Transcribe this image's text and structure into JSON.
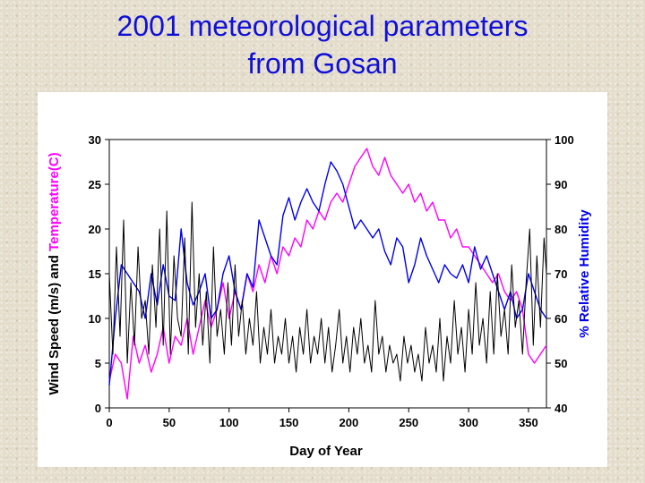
{
  "title": {
    "line1": "2001 meteorological parameters",
    "line2": "from Gosan"
  },
  "colors": {
    "title": "#1010d8",
    "wind_speed": "#000000",
    "temperature": "#ff00ff",
    "humidity": "#0000ee"
  },
  "chart_data": {
    "type": "line",
    "xlabel": "Day of Year",
    "ylabel_left_part1": "Wind Speed (m/s) and ",
    "ylabel_left_part2": "Temperature(C)",
    "ylabel_right": "% Relative Humidity",
    "xlim": [
      0,
      365
    ],
    "ylim_left": [
      0,
      30
    ],
    "ylim_right": [
      40,
      100
    ],
    "x_ticks": [
      0,
      50,
      100,
      150,
      200,
      250,
      300,
      350
    ],
    "y_left_ticks": [
      0,
      5,
      10,
      15,
      20,
      25,
      30
    ],
    "y_right_ticks": [
      40,
      50,
      60,
      70,
      80,
      90,
      100
    ],
    "grid": false,
    "series": [
      {
        "name": "Temperature(C)",
        "axis": "left",
        "x": [
          0,
          5,
          10,
          15,
          20,
          25,
          30,
          35,
          40,
          45,
          50,
          55,
          60,
          65,
          70,
          75,
          80,
          85,
          90,
          95,
          100,
          105,
          110,
          115,
          120,
          125,
          130,
          135,
          140,
          145,
          150,
          155,
          160,
          165,
          170,
          175,
          180,
          185,
          190,
          195,
          200,
          205,
          210,
          215,
          220,
          225,
          230,
          235,
          240,
          245,
          250,
          255,
          260,
          265,
          270,
          275,
          280,
          285,
          290,
          295,
          300,
          305,
          310,
          315,
          320,
          325,
          330,
          335,
          340,
          345,
          350,
          355,
          360,
          365
        ],
        "values": [
          3,
          6,
          5,
          1,
          8,
          5,
          7,
          4,
          6,
          9,
          5,
          8,
          7,
          10,
          6,
          9,
          12,
          9,
          11,
          14,
          10,
          13,
          11,
          15,
          13,
          16,
          14,
          17,
          15,
          18,
          17,
          19,
          18,
          21,
          20,
          22,
          21,
          23,
          24,
          23,
          25,
          27,
          28,
          29,
          27,
          26,
          28,
          26,
          25,
          24,
          25,
          23,
          24,
          22,
          23,
          21,
          21,
          19,
          20,
          18,
          18,
          17,
          16,
          15,
          14,
          15,
          13,
          12,
          13,
          11,
          6,
          5,
          6,
          7
        ]
      },
      {
        "name": "% Relative Humidity",
        "axis": "right",
        "x": [
          0,
          5,
          10,
          15,
          20,
          25,
          30,
          35,
          40,
          45,
          50,
          55,
          60,
          65,
          70,
          75,
          80,
          85,
          90,
          95,
          100,
          105,
          110,
          115,
          120,
          125,
          130,
          135,
          140,
          145,
          150,
          155,
          160,
          165,
          170,
          175,
          180,
          185,
          190,
          195,
          200,
          205,
          210,
          215,
          220,
          225,
          230,
          235,
          240,
          245,
          250,
          255,
          260,
          265,
          270,
          275,
          280,
          285,
          290,
          295,
          300,
          305,
          310,
          315,
          320,
          325,
          330,
          335,
          340,
          345,
          350,
          355,
          360,
          365
        ],
        "values": [
          45,
          60,
          72,
          70,
          68,
          66,
          60,
          70,
          63,
          72,
          65,
          64,
          80,
          68,
          63,
          66,
          70,
          60,
          62,
          70,
          74,
          66,
          62,
          70,
          67,
          82,
          78,
          74,
          72,
          83,
          87,
          82,
          86,
          89,
          86,
          84,
          90,
          95,
          93,
          90,
          85,
          80,
          82,
          80,
          78,
          80,
          75,
          72,
          78,
          76,
          68,
          72,
          78,
          74,
          71,
          68,
          72,
          70,
          69,
          72,
          68,
          76,
          71,
          74,
          70,
          66,
          62,
          66,
          60,
          62,
          70,
          66,
          62,
          60
        ]
      },
      {
        "name": "Wind Speed (m/s)",
        "axis": "left",
        "x": [
          0,
          3,
          6,
          9,
          12,
          15,
          18,
          21,
          24,
          27,
          30,
          33,
          36,
          39,
          42,
          45,
          48,
          51,
          54,
          57,
          60,
          63,
          66,
          69,
          72,
          75,
          78,
          81,
          84,
          87,
          90,
          93,
          96,
          99,
          102,
          105,
          108,
          111,
          114,
          117,
          120,
          123,
          126,
          129,
          132,
          135,
          138,
          141,
          144,
          147,
          150,
          153,
          156,
          159,
          162,
          165,
          168,
          171,
          174,
          177,
          180,
          183,
          186,
          189,
          192,
          195,
          198,
          201,
          204,
          207,
          210,
          213,
          216,
          219,
          222,
          225,
          228,
          231,
          234,
          237,
          240,
          243,
          246,
          249,
          252,
          255,
          258,
          261,
          264,
          267,
          270,
          273,
          276,
          279,
          282,
          285,
          288,
          291,
          294,
          297,
          300,
          303,
          306,
          309,
          312,
          315,
          318,
          321,
          324,
          327,
          330,
          333,
          336,
          339,
          342,
          345,
          348,
          351,
          354,
          357,
          360,
          363,
          365
        ],
        "values": [
          15,
          6,
          18,
          8,
          21,
          5,
          14,
          7,
          18,
          10,
          12,
          6,
          16,
          9,
          20,
          7,
          22,
          6,
          17,
          10,
          8,
          19,
          6,
          23,
          9,
          15,
          7,
          13,
          5,
          18,
          8,
          11,
          6,
          14,
          7,
          16,
          8,
          12,
          6,
          10,
          7,
          13,
          5,
          9,
          6,
          11,
          5,
          8,
          6,
          10,
          5,
          8,
          4,
          9,
          6,
          11,
          5,
          8,
          6,
          10,
          5,
          9,
          4,
          7,
          11,
          5,
          8,
          4,
          9,
          6,
          10,
          5,
          7,
          4,
          12,
          6,
          8,
          4,
          7,
          5,
          6,
          3,
          8,
          5,
          7,
          4,
          6,
          3,
          9,
          5,
          7,
          4,
          10,
          3,
          8,
          5,
          12,
          6,
          9,
          4,
          11,
          6,
          14,
          7,
          10,
          5,
          13,
          6,
          15,
          8,
          11,
          6,
          16,
          9,
          12,
          6,
          14,
          20,
          7,
          17,
          9,
          19,
          15
        ]
      }
    ]
  }
}
